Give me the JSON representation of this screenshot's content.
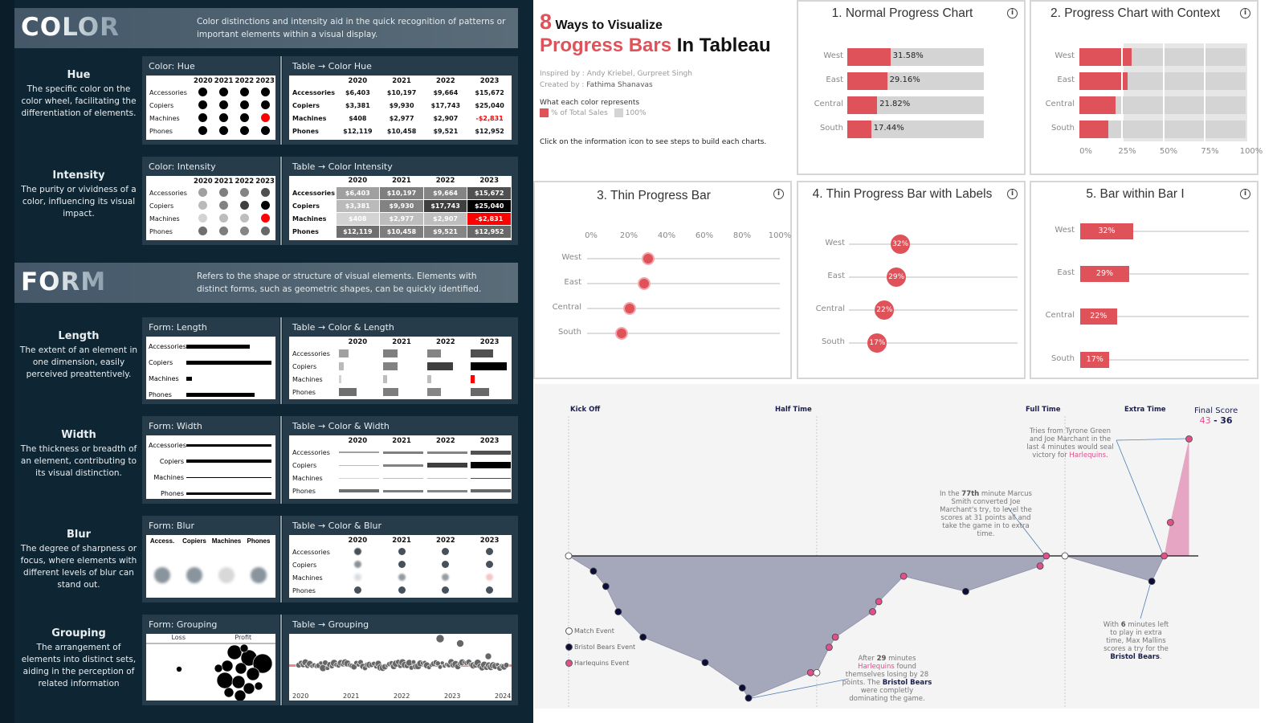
{
  "left": {
    "sections": [
      {
        "title": "COLOR",
        "description": "Color distinctions and intensity aid in the quick recognition of patterns or important elements within a visual display."
      },
      {
        "title": "FORM",
        "description": "Refers to the shape or structure of visual elements. Elements with distinct forms, such as geometric shapes, can be quickly identified."
      }
    ],
    "rows": [
      {
        "type": "hue",
        "label": "Hue",
        "description": "The specific color on the color wheel, facilitating the differentiation of elements.",
        "form_title": "Color: Hue",
        "table_title": "Table → Color Hue"
      },
      {
        "type": "intensity",
        "label": "Intensity",
        "description": "The purity or vividness of a color, influencing its visual impact.",
        "form_title": "Color: Intensity",
        "table_title": "Table → Color Intensity"
      },
      {
        "type": "length",
        "label": "Length",
        "description": "The extent of an element in one dimension, easily perceived preattentively.",
        "form_title": "Form: Length",
        "table_title": "Table → Color & Length"
      },
      {
        "type": "width",
        "label": "Width",
        "description": "The thickness or breadth of an element, contributing to its visual distinction.",
        "form_title": "Form: Width",
        "table_title": "Table → Color & Width"
      },
      {
        "type": "blur",
        "label": "Blur",
        "description": "The degree of sharpness or focus, where elements with different levels of blur can stand out.",
        "form_title": "Form: Blur",
        "table_title": "Table → Color & Blur"
      },
      {
        "type": "grouping",
        "label": "Grouping",
        "description": "The arrangement of elements into distinct sets, aiding in the perception of related information",
        "form_title": "Form: Grouping",
        "table_title": "Table → Grouping"
      }
    ],
    "years": [
      "2020",
      "2021",
      "2022",
      "2023"
    ],
    "categories": [
      "Accessories",
      "Copiers",
      "Machines",
      "Phones"
    ],
    "blur_labels": [
      "Access.",
      "Copiers",
      "Machines",
      "Phones"
    ],
    "sales": [
      [
        "$6,403",
        "$10,197",
        "$9,664",
        "$15,672"
      ],
      [
        "$3,381",
        "$9,930",
        "$17,743",
        "$25,040"
      ],
      [
        "$408",
        "$2,977",
        "$2,907",
        "-$2,831"
      ],
      [
        "$12,119",
        "$10,458",
        "$9,521",
        "$12,952"
      ]
    ],
    "grouping": {
      "loss": "Loss",
      "profit": "Profit",
      "years": [
        "2020",
        "2021",
        "2022",
        "2023",
        "2024"
      ]
    },
    "colors": {
      "highlight": "#ff0000",
      "background": "#0e2633",
      "panel": "#263c4a"
    }
  },
  "intro": {
    "number": "8",
    "line1": "Ways to Visualize",
    "highlight": "Progress Bars",
    "line2_rest": "In Tableau",
    "inspired_label": "Inspired by :",
    "inspired": "Andy Kriebel, Gurpreet Singh",
    "created_label": "Created by :",
    "created": "Fathima Shanavas",
    "legend_title": "What each color represents",
    "legend": [
      {
        "label": "% of Total Sales",
        "color": "#e0525a"
      },
      {
        "label": "100%",
        "color": "#d4d4d4"
      }
    ],
    "note": "Click on the information icon to see steps to build each charts."
  },
  "progress": {
    "regions": [
      "West",
      "East",
      "Central",
      "South"
    ],
    "values": [
      31.58,
      29.16,
      21.82,
      17.44
    ],
    "labels_precise": [
      "31.58%",
      "29.16%",
      "21.82%",
      "17.44%"
    ],
    "labels_rounded": [
      "32%",
      "29%",
      "22%",
      "17%"
    ],
    "colors": {
      "fill": "#e0525a",
      "track": "#d4d4d4"
    }
  },
  "charts": [
    {
      "title": "1. Normal Progress Chart",
      "info_icon": "info-icon"
    },
    {
      "title": "2. Progress Chart with Context",
      "info_icon": "info-icon",
      "ticks": [
        "0%",
        "25%",
        "50%",
        "75%",
        "100%"
      ]
    },
    {
      "title": "3. Thin Progress Bar",
      "info_icon": "info-icon",
      "ticks": [
        "0%",
        "20%",
        "40%",
        "60%",
        "80%",
        "100%"
      ]
    },
    {
      "title": "4. Thin Progress Bar with Labels",
      "info_icon": "info-icon"
    },
    {
      "title": "5. Bar within Bar I",
      "info_icon": "info-icon"
    }
  ],
  "match": {
    "phases": [
      "Kick Off",
      "Half Time",
      "Full Time",
      "Extra Time"
    ],
    "final_score_label": "Final Score",
    "home_score": "43",
    "separator": "-",
    "away_score": "36",
    "legend": [
      "Match Event",
      "Bristol Bears Event",
      "Harlequins Event"
    ],
    "colors": {
      "harlequins": "#e0508a",
      "bristol": "#0d0d3a",
      "bristol_area": "#a5a7bb",
      "harlequins_area": "#e6a5c3",
      "arrow": "#4f7fb5"
    },
    "events": [
      {
        "minute": 0,
        "diff": 0,
        "team": "match"
      },
      {
        "minute": 4,
        "diff": -3,
        "team": "bristol"
      },
      {
        "minute": 6,
        "diff": -6,
        "team": "bristol"
      },
      {
        "minute": 8,
        "diff": -11,
        "team": "bristol"
      },
      {
        "minute": 12,
        "diff": -16,
        "team": "bristol"
      },
      {
        "minute": 22,
        "diff": -21,
        "team": "bristol"
      },
      {
        "minute": 28,
        "diff": -26,
        "team": "bristol"
      },
      {
        "minute": 29,
        "diff": -28,
        "team": "bristol"
      },
      {
        "minute": 39,
        "diff": -23,
        "team": "harlequins"
      },
      {
        "minute": 40,
        "diff": -23,
        "team": "match"
      },
      {
        "minute": 42,
        "diff": -18,
        "team": "harlequins"
      },
      {
        "minute": 43,
        "diff": -16,
        "team": "harlequins"
      },
      {
        "minute": 49,
        "diff": -11,
        "team": "harlequins"
      },
      {
        "minute": 50,
        "diff": -9,
        "team": "harlequins"
      },
      {
        "minute": 54,
        "diff": -4,
        "team": "harlequins"
      },
      {
        "minute": 64,
        "diff": -7,
        "team": "bristol"
      },
      {
        "minute": 76,
        "diff": -2,
        "team": "harlequins"
      },
      {
        "minute": 77,
        "diff": 0,
        "team": "harlequins"
      },
      {
        "minute": 80,
        "diff": 0,
        "team": "match"
      },
      {
        "minute": 94,
        "diff": -5,
        "team": "bristol"
      },
      {
        "minute": 96,
        "diff": 0,
        "team": "harlequins"
      },
      {
        "minute": 97,
        "diff": 2,
        "team": "harlequins"
      },
      {
        "minute": 100,
        "diff": 7,
        "team": "harlequins"
      }
    ],
    "annotations": {
      "tries": {
        "t1": "Tries from Tyrone Green and Joe Marchant in the last 4 minutes would seal victory for ",
        "team": "Harlequins",
        "t2": "."
      },
      "level": {
        "t1": "In the ",
        "bold": "77th",
        "t2": " minute Marcus Smith converted Joe Marchant's try, to level the scores at 31 points all and take the game in to extra time."
      },
      "losing": {
        "t1": "After ",
        "bold": "29",
        "t2": " minutes ",
        "team1": "Harlequins",
        "t3": " found themselves losing by 28 points. The ",
        "team2": "Bristol Bears",
        "t4": " were completly dominating the game."
      },
      "mallins": {
        "t1": "With ",
        "bold": "6",
        "t2": " minutes left to play in extra time, Max Mallins scores a try for the ",
        "team": "Bristol Bears",
        "t3": "."
      }
    }
  }
}
